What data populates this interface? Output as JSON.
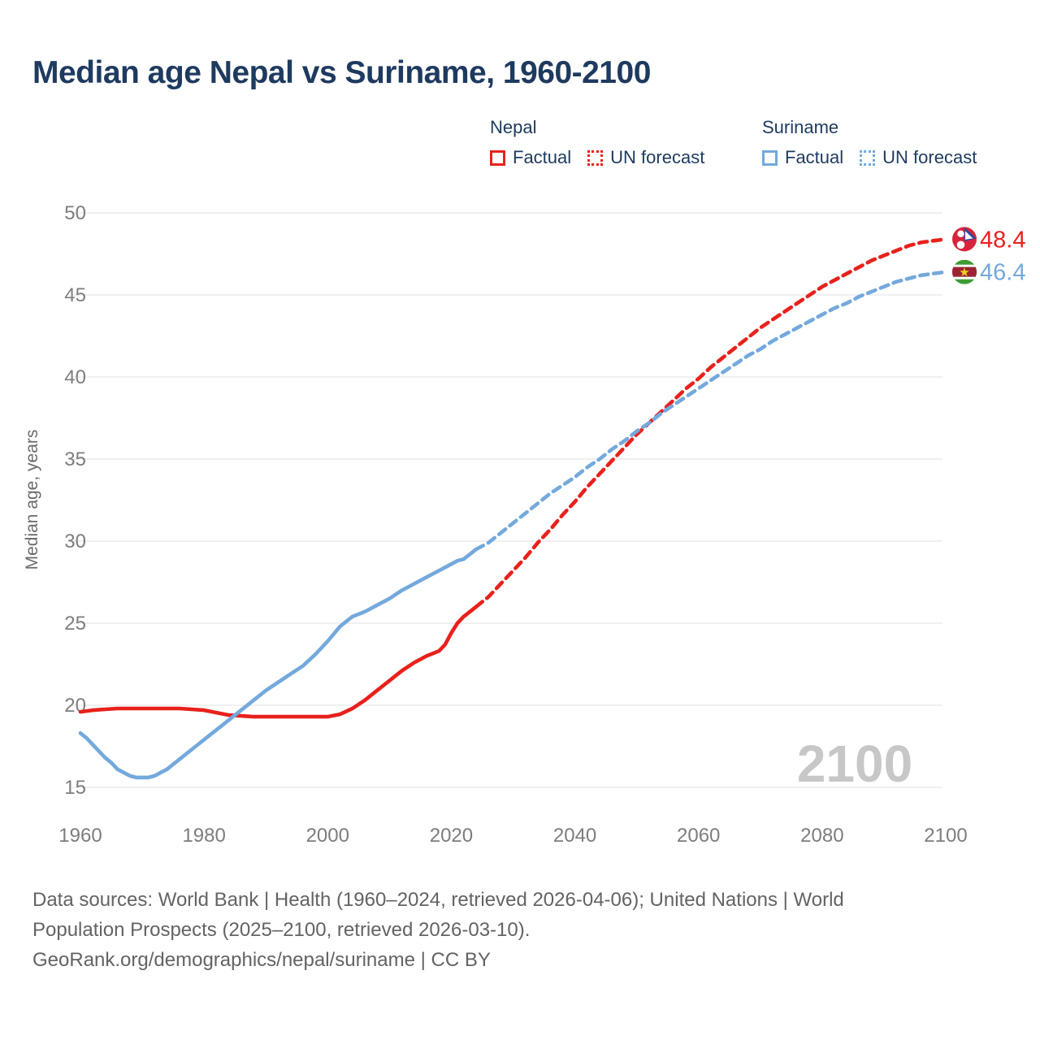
{
  "title": "Median age Nepal vs Suriname, 1960-2100",
  "legend": {
    "groups": [
      {
        "name": "Nepal",
        "color": "#e8211c",
        "items": [
          {
            "label": "Factual",
            "style": "solid"
          },
          {
            "label": "UN forecast",
            "style": "dotted"
          }
        ]
      },
      {
        "name": "Suriname",
        "color": "#74a9dc",
        "items": [
          {
            "label": "Factual",
            "style": "solid"
          },
          {
            "label": "UN forecast",
            "style": "dotted"
          }
        ]
      }
    ]
  },
  "chart_data": {
    "type": "line",
    "title": "Median age Nepal vs Suriname, 1960-2100",
    "ylabel": "Median age, years",
    "xlabel": "",
    "xlim": [
      1960,
      2100
    ],
    "ylim": [
      13.5,
      52
    ],
    "yticks": [
      15,
      20,
      25,
      30,
      35,
      40,
      45,
      50
    ],
    "xticks": [
      1960,
      1980,
      2000,
      2020,
      2040,
      2060,
      2080,
      2100
    ],
    "grid": "horizontal-only",
    "legend_position": "top",
    "watermark": "2100",
    "colors": {
      "nepal": "#e8211c",
      "suriname": "#74a9dc",
      "gridline": "#ececec",
      "tick_text": "#7d7d7d",
      "watermark": "#c7c7c7",
      "title_text": "#1e3a5f"
    },
    "series": [
      {
        "name": "Nepal Factual",
        "country": "nepal",
        "kind": "factual",
        "color": "#e8211c",
        "dash": false,
        "points": [
          [
            1960,
            19.6
          ],
          [
            1962,
            19.7
          ],
          [
            1964,
            19.75
          ],
          [
            1966,
            19.8
          ],
          [
            1968,
            19.8
          ],
          [
            1970,
            19.8
          ],
          [
            1972,
            19.8
          ],
          [
            1974,
            19.8
          ],
          [
            1976,
            19.8
          ],
          [
            1978,
            19.75
          ],
          [
            1980,
            19.7
          ],
          [
            1982,
            19.55
          ],
          [
            1984,
            19.4
          ],
          [
            1986,
            19.35
          ],
          [
            1988,
            19.3
          ],
          [
            1990,
            19.3
          ],
          [
            1992,
            19.3
          ],
          [
            1994,
            19.3
          ],
          [
            1996,
            19.3
          ],
          [
            1998,
            19.3
          ],
          [
            2000,
            19.3
          ],
          [
            2002,
            19.45
          ],
          [
            2004,
            19.8
          ],
          [
            2006,
            20.3
          ],
          [
            2008,
            20.9
          ],
          [
            2010,
            21.5
          ],
          [
            2012,
            22.1
          ],
          [
            2014,
            22.6
          ],
          [
            2016,
            23.0
          ],
          [
            2018,
            23.3
          ],
          [
            2019,
            23.7
          ],
          [
            2020,
            24.4
          ],
          [
            2021,
            25.0
          ],
          [
            2022,
            25.4
          ],
          [
            2023,
            25.7
          ],
          [
            2024,
            26.0
          ]
        ]
      },
      {
        "name": "Nepal UN forecast",
        "country": "nepal",
        "kind": "forecast",
        "color": "#e8211c",
        "dash": true,
        "points": [
          [
            2024,
            26.0
          ],
          [
            2026,
            26.6
          ],
          [
            2028,
            27.4
          ],
          [
            2030,
            28.2
          ],
          [
            2032,
            29.0
          ],
          [
            2034,
            29.9
          ],
          [
            2036,
            30.7
          ],
          [
            2038,
            31.6
          ],
          [
            2040,
            32.4
          ],
          [
            2042,
            33.3
          ],
          [
            2044,
            34.1
          ],
          [
            2046,
            34.9
          ],
          [
            2048,
            35.7
          ],
          [
            2050,
            36.5
          ],
          [
            2052,
            37.2
          ],
          [
            2054,
            37.9
          ],
          [
            2056,
            38.6
          ],
          [
            2058,
            39.3
          ],
          [
            2060,
            39.9
          ],
          [
            2062,
            40.6
          ],
          [
            2064,
            41.2
          ],
          [
            2066,
            41.8
          ],
          [
            2068,
            42.4
          ],
          [
            2070,
            43.0
          ],
          [
            2072,
            43.5
          ],
          [
            2074,
            44.0
          ],
          [
            2076,
            44.5
          ],
          [
            2078,
            45.0
          ],
          [
            2080,
            45.5
          ],
          [
            2082,
            45.9
          ],
          [
            2084,
            46.3
          ],
          [
            2086,
            46.7
          ],
          [
            2088,
            47.1
          ],
          [
            2090,
            47.4
          ],
          [
            2092,
            47.7
          ],
          [
            2094,
            48.0
          ],
          [
            2096,
            48.2
          ],
          [
            2098,
            48.3
          ],
          [
            2100,
            48.4
          ]
        ]
      },
      {
        "name": "Suriname Factual",
        "country": "suriname",
        "kind": "factual",
        "color": "#74a9dc",
        "dash": false,
        "points": [
          [
            1960,
            18.3
          ],
          [
            1961,
            18.0
          ],
          [
            1962,
            17.6
          ],
          [
            1963,
            17.2
          ],
          [
            1964,
            16.8
          ],
          [
            1965,
            16.5
          ],
          [
            1966,
            16.1
          ],
          [
            1967,
            15.9
          ],
          [
            1968,
            15.7
          ],
          [
            1969,
            15.6
          ],
          [
            1970,
            15.6
          ],
          [
            1971,
            15.6
          ],
          [
            1972,
            15.7
          ],
          [
            1973,
            15.9
          ],
          [
            1974,
            16.1
          ],
          [
            1975,
            16.4
          ],
          [
            1976,
            16.7
          ],
          [
            1977,
            17.0
          ],
          [
            1978,
            17.3
          ],
          [
            1979,
            17.6
          ],
          [
            1980,
            17.9
          ],
          [
            1982,
            18.5
          ],
          [
            1984,
            19.1
          ],
          [
            1986,
            19.7
          ],
          [
            1988,
            20.3
          ],
          [
            1990,
            20.9
          ],
          [
            1992,
            21.4
          ],
          [
            1994,
            21.9
          ],
          [
            1996,
            22.4
          ],
          [
            1998,
            23.1
          ],
          [
            2000,
            23.9
          ],
          [
            2002,
            24.8
          ],
          [
            2004,
            25.4
          ],
          [
            2006,
            25.7
          ],
          [
            2008,
            26.1
          ],
          [
            2010,
            26.5
          ],
          [
            2012,
            27.0
          ],
          [
            2014,
            27.4
          ],
          [
            2016,
            27.8
          ],
          [
            2018,
            28.2
          ],
          [
            2019,
            28.4
          ],
          [
            2020,
            28.6
          ],
          [
            2021,
            28.8
          ],
          [
            2022,
            28.9
          ],
          [
            2023,
            29.2
          ],
          [
            2024,
            29.5
          ]
        ]
      },
      {
        "name": "Suriname UN forecast",
        "country": "suriname",
        "kind": "forecast",
        "color": "#74a9dc",
        "dash": true,
        "points": [
          [
            2024,
            29.5
          ],
          [
            2026,
            29.9
          ],
          [
            2028,
            30.5
          ],
          [
            2030,
            31.1
          ],
          [
            2032,
            31.7
          ],
          [
            2034,
            32.3
          ],
          [
            2036,
            32.9
          ],
          [
            2038,
            33.4
          ],
          [
            2040,
            33.9
          ],
          [
            2042,
            34.5
          ],
          [
            2044,
            35.0
          ],
          [
            2046,
            35.6
          ],
          [
            2048,
            36.1
          ],
          [
            2050,
            36.7
          ],
          [
            2052,
            37.2
          ],
          [
            2054,
            37.8
          ],
          [
            2056,
            38.3
          ],
          [
            2058,
            38.8
          ],
          [
            2060,
            39.3
          ],
          [
            2062,
            39.8
          ],
          [
            2064,
            40.3
          ],
          [
            2066,
            40.8
          ],
          [
            2068,
            41.3
          ],
          [
            2070,
            41.7
          ],
          [
            2072,
            42.2
          ],
          [
            2074,
            42.6
          ],
          [
            2076,
            43.0
          ],
          [
            2078,
            43.4
          ],
          [
            2080,
            43.8
          ],
          [
            2082,
            44.2
          ],
          [
            2084,
            44.5
          ],
          [
            2086,
            44.9
          ],
          [
            2088,
            45.2
          ],
          [
            2090,
            45.5
          ],
          [
            2092,
            45.8
          ],
          [
            2094,
            46.0
          ],
          [
            2096,
            46.2
          ],
          [
            2098,
            46.3
          ],
          [
            2100,
            46.4
          ]
        ]
      }
    ],
    "end_labels": [
      {
        "text": "48.4",
        "value": 48.4,
        "color": "#e8211c",
        "flag": "nepal"
      },
      {
        "text": "46.4",
        "value": 46.4,
        "color": "#74a9dc",
        "flag": "suriname"
      }
    ]
  },
  "footer": {
    "lines": [
      "Data sources: World Bank | Health (1960–2024, retrieved 2026-04-06); United Nations | World",
      "Population Prospects (2025–2100, retrieved 2026-03-10).",
      "GeoRank.org/demographics/nepal/suriname | CC BY"
    ]
  }
}
